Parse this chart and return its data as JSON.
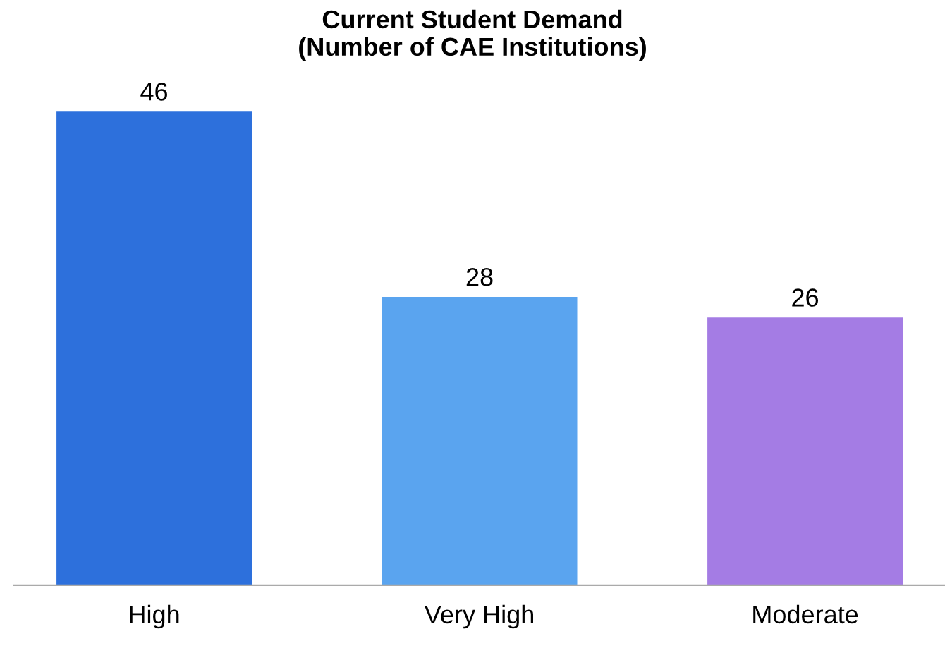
{
  "chart_data": {
    "type": "bar",
    "title": "Current Student Demand\n(Number of CAE Institutions)",
    "categories": [
      "High",
      "Very High",
      "Moderate"
    ],
    "values": [
      46,
      28,
      26
    ],
    "colors": [
      "#2d70dc",
      "#5aa4ef",
      "#a47ce4"
    ],
    "data_labels": true,
    "grid": false,
    "legend": false
  }
}
